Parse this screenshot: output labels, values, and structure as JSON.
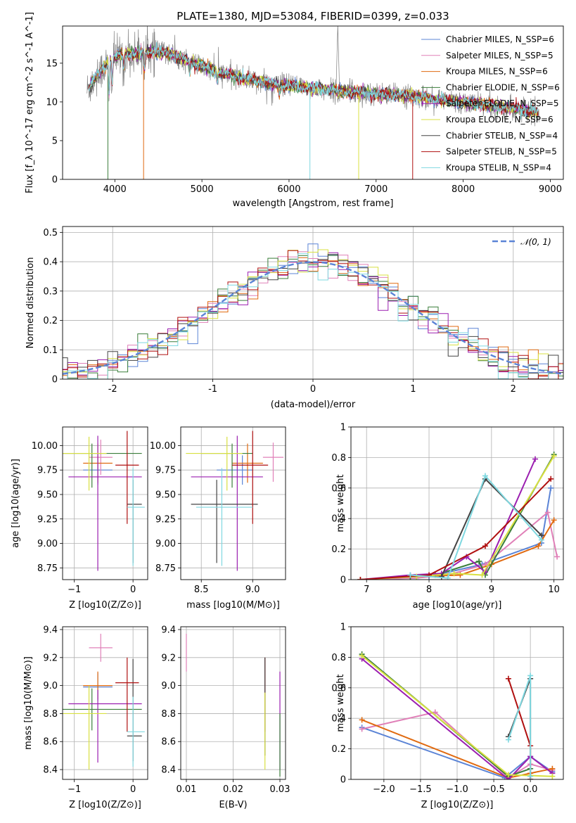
{
  "colors": {
    "chabrier_miles": "#5b84d6",
    "salpeter_miles": "#e080b8",
    "kroupa_miles": "#e06a10",
    "chabrier_elodie": "#3a7e3a",
    "salpeter_elodie": "#9b1fb0",
    "kroupa_elodie": "#d8e040",
    "chabrier_stelib": "#444444",
    "salpeter_stelib": "#b01010",
    "kroupa_stelib": "#7fd8e0",
    "data": "#808080",
    "gauss": "#5b84d6"
  },
  "chart_data": [
    {
      "id": "spectrum",
      "type": "line",
      "title": "PLATE=1380, MJD=53084, FIBERID=0399, z=0.033",
      "xlabel": "wavelength [Angstrom, rest frame]",
      "ylabel": "Flux [f_λ 10^-17 erg cm^-2 s^-1 A^-1]",
      "xlim": [
        3400,
        9150
      ],
      "ylim": [
        0,
        19.8
      ],
      "xticks": [
        4000,
        5000,
        6000,
        7000,
        8000,
        9000
      ],
      "yticks": [
        0,
        5,
        10,
        15
      ],
      "grid": false,
      "legend_position": "top-right",
      "series": [
        {
          "name": "Chabrier MILES, N_SSP=6",
          "key": "chabrier_miles"
        },
        {
          "name": "Salpeter MILES, N_SSP=5",
          "key": "salpeter_miles"
        },
        {
          "name": "Kroupa MILES, N_SSP=6",
          "key": "kroupa_miles"
        },
        {
          "name": "Chabrier ELODIE, N_SSP=6",
          "key": "chabrier_elodie"
        },
        {
          "name": "Salpeter ELODIE, N_SSP=5",
          "key": "salpeter_elodie"
        },
        {
          "name": "Kroupa ELODIE, N_SSP=6",
          "key": "kroupa_elodie"
        },
        {
          "name": "Chabrier STELIB, N_SSP=4",
          "key": "chabrier_stelib"
        },
        {
          "name": "Salpeter STELIB, N_SSP=5",
          "key": "salpeter_stelib"
        },
        {
          "name": "Kroupa STELIB, N_SSP=4",
          "key": "kroupa_stelib"
        }
      ],
      "continuum": [
        [
          3680,
          11.5
        ],
        [
          3800,
          13.5
        ],
        [
          3900,
          14.8
        ],
        [
          4000,
          15.8
        ],
        [
          4200,
          16.2
        ],
        [
          4400,
          16.5
        ],
        [
          4600,
          16.3
        ],
        [
          4800,
          15.5
        ],
        [
          5000,
          14.6
        ],
        [
          5200,
          13.8
        ],
        [
          5400,
          13.2
        ],
        [
          5600,
          12.8
        ],
        [
          5800,
          12.3
        ],
        [
          6000,
          12.1
        ],
        [
          6200,
          11.9
        ],
        [
          6400,
          11.6
        ],
        [
          6600,
          11.4
        ],
        [
          6800,
          11.2
        ],
        [
          7000,
          11.0
        ],
        [
          7200,
          10.9
        ],
        [
          7400,
          10.8
        ],
        [
          7600,
          10.5
        ],
        [
          7800,
          10.2
        ],
        [
          8000,
          9.9
        ],
        [
          8200,
          9.7
        ],
        [
          8400,
          9.4
        ],
        [
          8600,
          9.2
        ],
        [
          8800,
          8.8
        ],
        [
          8870,
          8.6
        ]
      ],
      "data_range": [
        3680,
        8870
      ]
    },
    {
      "id": "residuals",
      "type": "histogram",
      "xlabel": "(data-model)/error",
      "ylabel": "Normed distribution",
      "xlim": [
        -2.5,
        2.5
      ],
      "ylim": [
        0,
        0.52
      ],
      "xticks": [
        -2,
        -1,
        0,
        1,
        2
      ],
      "yticks": [
        0.0,
        0.1,
        0.2,
        0.3,
        0.4,
        0.5
      ],
      "grid": true,
      "legend": "𝒩(0, 1)",
      "legend_position": "top-right",
      "bin_width": 0.1
    },
    {
      "id": "age_vs_Z",
      "type": "errorbar",
      "xlabel": "Z [log10(Z/Z⊙)]",
      "ylabel": "age [log10(age/yr)]",
      "xlim": [
        -1.2,
        0.25
      ],
      "ylim": [
        8.63,
        10.19
      ],
      "xticks": [
        -1,
        0
      ],
      "xticklabels": [
        "−1",
        "0"
      ],
      "yticks": [
        8.75,
        9.0,
        9.25,
        9.5,
        9.75,
        10.0
      ],
      "yticklabels": [
        "8.75",
        "9.00",
        "9.25",
        "9.50",
        "9.75",
        "10.00"
      ],
      "grid": true,
      "points": [
        {
          "key": "chabrier_miles",
          "x": -0.6,
          "y": 9.75,
          "xerr": [
            0.25,
            0.25
          ],
          "yerr": [
            0.15,
            0.15
          ]
        },
        {
          "key": "salpeter_miles",
          "x": -0.55,
          "y": 9.88,
          "xerr": [
            0.2,
            0.2
          ],
          "yerr": [
            0.18,
            0.18
          ]
        },
        {
          "key": "kroupa_miles",
          "x": -0.6,
          "y": 9.82,
          "xerr": [
            0.25,
            0.25
          ],
          "yerr": [
            0.2,
            0.2
          ]
        },
        {
          "key": "chabrier_elodie",
          "x": -0.7,
          "y": 9.92,
          "xerr": [
            0.5,
            0.85
          ],
          "yerr": [
            0.35,
            0.1
          ]
        },
        {
          "key": "salpeter_elodie",
          "x": -0.6,
          "y": 9.68,
          "xerr": [
            0.5,
            0.75
          ],
          "yerr": [
            0.96,
            0.42
          ]
        },
        {
          "key": "kroupa_elodie",
          "x": -0.75,
          "y": 9.92,
          "xerr": [
            0.45,
            0.3
          ],
          "yerr": [
            0.38,
            0.17
          ]
        },
        {
          "key": "chabrier_stelib",
          "x": 0.0,
          "y": 9.4,
          "xerr": [
            0.1,
            0.15
          ],
          "yerr": [
            0.6,
            0.25
          ]
        },
        {
          "key": "salpeter_stelib",
          "x": -0.1,
          "y": 9.8,
          "xerr": [
            0.2,
            0.2
          ],
          "yerr": [
            0.6,
            0.35
          ]
        },
        {
          "key": "kroupa_stelib",
          "x": 0.0,
          "y": 9.37,
          "xerr": [
            0.1,
            0.2
          ],
          "yerr": [
            0.6,
            0.4
          ]
        }
      ]
    },
    {
      "id": "age_vs_mass",
      "type": "errorbar",
      "xlabel": "mass [log10(M/M⊙)]",
      "xlim": [
        8.3,
        9.32
      ],
      "ylim": [
        8.63,
        10.19
      ],
      "xticks": [
        8.5,
        9.0
      ],
      "xticklabels": [
        "8.5",
        "9.0"
      ],
      "yticks": [
        8.75,
        9.0,
        9.25,
        9.5,
        9.75,
        10.0
      ],
      "yticklabels": [
        "8.75",
        "9.00",
        "9.25",
        "9.50",
        "9.75",
        "10.00"
      ],
      "grid": true,
      "points": [
        {
          "key": "chabrier_miles",
          "x": 8.9,
          "y": 9.75,
          "xerr": [
            0.25,
            0.1
          ],
          "yerr": [
            0.15,
            0.15
          ]
        },
        {
          "key": "salpeter_miles",
          "x": 9.2,
          "y": 9.88,
          "xerr": [
            0.1,
            0.1
          ],
          "yerr": [
            0.25,
            0.15
          ]
        },
        {
          "key": "kroupa_miles",
          "x": 8.95,
          "y": 9.82,
          "xerr": [
            0.15,
            0.15
          ],
          "yerr": [
            0.2,
            0.2
          ]
        },
        {
          "key": "chabrier_elodie",
          "x": 8.8,
          "y": 9.92,
          "xerr": [
            0.3,
            0.2
          ],
          "yerr": [
            0.35,
            0.1
          ]
        },
        {
          "key": "salpeter_elodie",
          "x": 8.85,
          "y": 9.68,
          "xerr": [
            0.45,
            0.25
          ],
          "yerr": [
            0.96,
            0.42
          ]
        },
        {
          "key": "kroupa_elodie",
          "x": 8.75,
          "y": 9.92,
          "xerr": [
            0.4,
            0.15
          ],
          "yerr": [
            0.38,
            0.17
          ]
        },
        {
          "key": "chabrier_stelib",
          "x": 8.65,
          "y": 9.4,
          "xerr": [
            0.25,
            0.4
          ],
          "yerr": [
            0.6,
            0.25
          ]
        },
        {
          "key": "salpeter_stelib",
          "x": 9.0,
          "y": 9.8,
          "xerr": [
            0.2,
            0.15
          ],
          "yerr": [
            0.6,
            0.35
          ]
        },
        {
          "key": "kroupa_stelib",
          "x": 8.7,
          "y": 9.37,
          "xerr": [
            0.25,
            0.3
          ],
          "yerr": [
            0.6,
            0.4
          ]
        }
      ]
    },
    {
      "id": "weight_vs_age",
      "type": "line",
      "xlabel": "age [log10(age/yr)]",
      "ylabel": "mass weight",
      "xlim": [
        6.75,
        10.15
      ],
      "ylim": [
        0,
        1.0
      ],
      "xticks": [
        7,
        8,
        9,
        10
      ],
      "yticks": [
        0.0,
        0.2,
        0.4,
        0.6,
        0.8,
        1.0
      ],
      "grid": true,
      "series": [
        {
          "key": "chabrier_miles",
          "x": [
            6.9,
            7.7,
            8.0,
            8.85,
            9.8,
            9.95
          ],
          "y": [
            0.0,
            0.01,
            0.02,
            0.1,
            0.24,
            0.6
          ]
        },
        {
          "key": "salpeter_miles",
          "x": [
            6.9,
            7.8,
            8.3,
            8.9,
            9.9,
            10.05
          ],
          "y": [
            0.0,
            0.01,
            0.03,
            0.1,
            0.44,
            0.15
          ]
        },
        {
          "key": "kroupa_miles",
          "x": [
            6.9,
            7.7,
            8.5,
            9.0,
            9.75,
            10.0
          ],
          "y": [
            0.0,
            0.02,
            0.03,
            0.1,
            0.22,
            0.39
          ]
        },
        {
          "key": "chabrier_elodie",
          "x": [
            6.9,
            7.7,
            8.1,
            8.8,
            8.9,
            10.0
          ],
          "y": [
            0.0,
            0.02,
            0.03,
            0.12,
            0.03,
            0.82
          ]
        },
        {
          "key": "salpeter_elodie",
          "x": [
            6.9,
            7.7,
            8.2,
            8.6,
            8.9,
            9.7
          ],
          "y": [
            0.0,
            0.03,
            0.04,
            0.15,
            0.05,
            0.79
          ]
        },
        {
          "key": "kroupa_elodie",
          "x": [
            6.9,
            7.8,
            8.4,
            8.85,
            10.0
          ],
          "y": [
            0.0,
            0.02,
            0.04,
            0.03,
            0.81
          ]
        },
        {
          "key": "chabrier_stelib",
          "x": [
            8.2,
            8.9,
            9.8
          ],
          "y": [
            0.02,
            0.66,
            0.29
          ]
        },
        {
          "key": "salpeter_stelib",
          "x": [
            6.9,
            8.0,
            8.9,
            9.95
          ],
          "y": [
            0.0,
            0.03,
            0.22,
            0.66
          ]
        },
        {
          "key": "kroupa_stelib",
          "x": [
            7.7,
            8.3,
            8.9,
            9.8
          ],
          "y": [
            0.03,
            0.01,
            0.68,
            0.26
          ]
        }
      ]
    },
    {
      "id": "mass_vs_Z",
      "type": "errorbar",
      "xlabel": "Z [log10(Z/Z⊙)]",
      "ylabel": "mass [log10(M/M⊙)]",
      "xlim": [
        -1.2,
        0.25
      ],
      "ylim": [
        8.33,
        9.42
      ],
      "xticks": [
        -1,
        0
      ],
      "xticklabels": [
        "−1",
        "0"
      ],
      "yticks": [
        8.4,
        8.6,
        8.8,
        9.0,
        9.2,
        9.4
      ],
      "yticklabels": [
        "8.4",
        "8.6",
        "8.8",
        "9.0",
        "9.2",
        "9.4"
      ],
      "grid": true,
      "points": [
        {
          "key": "chabrier_miles",
          "x": -0.6,
          "y": 8.99,
          "xerr": [
            0.25,
            0.25
          ],
          "yerr": [
            0.1,
            0.1
          ]
        },
        {
          "key": "salpeter_miles",
          "x": -0.55,
          "y": 9.27,
          "xerr": [
            0.2,
            0.2
          ],
          "yerr": [
            0.1,
            0.1
          ]
        },
        {
          "key": "kroupa_miles",
          "x": -0.6,
          "y": 9.0,
          "xerr": [
            0.25,
            0.25
          ],
          "yerr": [
            0.1,
            0.1
          ]
        },
        {
          "key": "chabrier_elodie",
          "x": -0.7,
          "y": 8.83,
          "xerr": [
            0.5,
            0.85
          ],
          "yerr": [
            0.15,
            0.15
          ]
        },
        {
          "key": "salpeter_elodie",
          "x": -0.6,
          "y": 8.87,
          "xerr": [
            0.5,
            0.75
          ],
          "yerr": [
            0.42,
            0.1
          ]
        },
        {
          "key": "kroupa_elodie",
          "x": -0.75,
          "y": 8.8,
          "xerr": [
            0.45,
            0.3
          ],
          "yerr": [
            0.4,
            0.2
          ]
        },
        {
          "key": "chabrier_stelib",
          "x": 0.0,
          "y": 8.64,
          "xerr": [
            0.1,
            0.15
          ],
          "yerr": [
            0.18,
            0.55
          ]
        },
        {
          "key": "salpeter_stelib",
          "x": -0.1,
          "y": 9.02,
          "xerr": [
            0.2,
            0.2
          ],
          "yerr": [
            0.35,
            0.18
          ]
        },
        {
          "key": "kroupa_stelib",
          "x": 0.0,
          "y": 8.67,
          "xerr": [
            0.1,
            0.2
          ],
          "yerr": [
            0.25,
            0.25
          ]
        }
      ]
    },
    {
      "id": "mass_vs_ebv",
      "type": "errorbar",
      "xlabel": "E(B-V)",
      "xlim": [
        0.0088,
        0.0312
      ],
      "ylim": [
        8.33,
        9.42
      ],
      "xticks": [
        0.01,
        0.02,
        0.03
      ],
      "xticklabels": [
        "0.01",
        "0.02",
        "0.03"
      ],
      "yticks": [
        8.4,
        8.6,
        8.8,
        9.0,
        9.2,
        9.4
      ],
      "yticklabels": [
        "8.4",
        "8.6",
        "8.8",
        "9.0",
        "9.2",
        "9.4"
      ],
      "grid": true,
      "points": [
        {
          "key": "salpeter_miles",
          "x": 0.01,
          "y": 9.27,
          "xerr": [
            0,
            0
          ],
          "yerr": [
            0.17,
            0.1
          ]
        },
        {
          "key": "salpeter_stelib",
          "x": 0.0268,
          "y": 9.02,
          "xerr": [
            0,
            0
          ],
          "yerr": [
            0.35,
            0.18
          ]
        },
        {
          "key": "chabrier_stelib",
          "x": 0.0268,
          "y": 8.9,
          "xerr": [
            0,
            0
          ],
          "yerr": [
            0.4,
            0.3
          ]
        },
        {
          "key": "kroupa_elodie",
          "x": 0.0268,
          "y": 8.75,
          "xerr": [
            0,
            0
          ],
          "yerr": [
            0.35,
            0.2
          ]
        },
        {
          "key": "salpeter_elodie",
          "x": 0.03,
          "y": 8.75,
          "xerr": [
            0,
            0
          ],
          "yerr": [
            0.35,
            0.35
          ]
        },
        {
          "key": "chabrier_elodie",
          "x": 0.03,
          "y": 8.6,
          "xerr": [
            0,
            0
          ],
          "yerr": [
            0.25,
            0.2
          ]
        }
      ]
    },
    {
      "id": "weight_vs_Z",
      "type": "line",
      "xlabel": "Z [log10(Z/Z⊙)]",
      "ylabel": "mass weight",
      "xlim": [
        -2.45,
        0.45
      ],
      "ylim": [
        0,
        1.0
      ],
      "xticks": [
        -2.0,
        -1.5,
        -1.0,
        -0.5,
        0.0
      ],
      "xticklabels": [
        "−2.0",
        "−1.5",
        "−1.0",
        "−0.5",
        "0.0"
      ],
      "yticks": [
        0.0,
        0.2,
        0.4,
        0.6,
        0.8,
        1.0
      ],
      "grid": true,
      "series": [
        {
          "key": "chabrier_miles",
          "x": [
            -2.3,
            -0.35,
            0.0,
            0.3
          ],
          "y": [
            0.34,
            0.01,
            0.15,
            0.05
          ]
        },
        {
          "key": "salpeter_miles",
          "x": [
            -2.3,
            -1.3,
            -0.3,
            -0.0,
            0.3
          ],
          "y": [
            0.33,
            0.44,
            0.01,
            0.1,
            0.06
          ]
        },
        {
          "key": "kroupa_miles",
          "x": [
            -2.3,
            -0.3,
            0.0,
            0.3
          ],
          "y": [
            0.39,
            0.01,
            0.04,
            0.07
          ]
        },
        {
          "key": "chabrier_elodie",
          "x": [
            -2.3,
            -0.3,
            0.0
          ],
          "y": [
            0.82,
            0.02,
            0.07
          ]
        },
        {
          "key": "salpeter_elodie",
          "x": [
            -2.3,
            -0.3,
            0.0,
            0.3
          ],
          "y": [
            0.79,
            0.0,
            0.15,
            0.04
          ]
        },
        {
          "key": "kroupa_elodie",
          "x": [
            -2.3,
            -0.3,
            0.3
          ],
          "y": [
            0.81,
            0.03,
            0.02
          ]
        },
        {
          "key": "chabrier_stelib",
          "x": [
            -0.3,
            0.0,
            0.0
          ],
          "y": [
            0.28,
            0.66,
            0.0
          ]
        },
        {
          "key": "salpeter_stelib",
          "x": [
            -0.3,
            0.0,
            0.0
          ],
          "y": [
            0.66,
            0.22,
            0.0
          ]
        },
        {
          "key": "kroupa_stelib",
          "x": [
            -0.3,
            0.0,
            0.0
          ],
          "y": [
            0.26,
            0.68,
            0.02
          ]
        }
      ]
    }
  ]
}
